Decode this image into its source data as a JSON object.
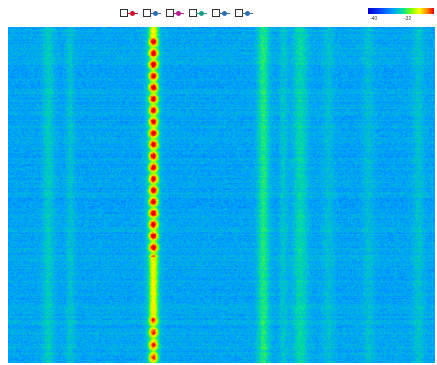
{
  "toolbar": {
    "markers": [
      {
        "name": "marker-1",
        "color": "#c8102e"
      },
      {
        "name": "marker-2",
        "color": "#2f6fb0"
      },
      {
        "name": "marker-3",
        "color": "#b0208a"
      },
      {
        "name": "marker-4",
        "color": "#1f9b8a"
      },
      {
        "name": "marker-5",
        "color": "#2f6fb0"
      },
      {
        "name": "marker-6",
        "color": "#2f6fb0"
      }
    ]
  },
  "colorbar": {
    "min_label": "-40",
    "max_label": "-32"
  },
  "waterfall": {
    "palette": [
      "#0000c8",
      "#0040ff",
      "#00a0ff",
      "#00e0a0",
      "#80ff00",
      "#ffff00",
      "#ff8000",
      "#e00000"
    ]
  }
}
